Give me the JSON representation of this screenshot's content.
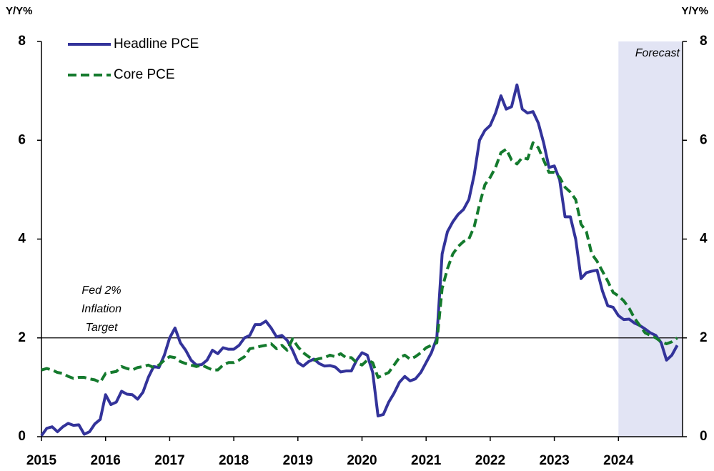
{
  "chart_data": {
    "type": "line",
    "y_label": "Y/Y%",
    "y2_label": "Y/Y%",
    "xlim": [
      2015,
      2025
    ],
    "xticks": [
      2015,
      2016,
      2017,
      2018,
      2019,
      2020,
      2021,
      2022,
      2023,
      2024
    ],
    "ylim": [
      0,
      8
    ],
    "yticks": [
      0,
      2,
      4,
      6,
      8
    ],
    "y2lim": [
      0,
      8
    ],
    "y2ticks": [
      0,
      2,
      4,
      6,
      8
    ],
    "grid": false,
    "legend": "upper left",
    "reference_line": {
      "value": 2,
      "color": "#000000",
      "label_lines": [
        "Fed 2%",
        "Inflation",
        "Target"
      ]
    },
    "shaded_region": {
      "xlim": [
        2024,
        2025
      ],
      "label": "Forecast",
      "color": "#e2e4f4"
    },
    "x": [
      2015,
      2015.083,
      2015.167,
      2015.25,
      2015.333,
      2015.417,
      2015.5,
      2015.583,
      2015.667,
      2015.75,
      2015.833,
      2015.917,
      2016,
      2016.083,
      2016.167,
      2016.25,
      2016.333,
      2016.417,
      2016.5,
      2016.583,
      2016.667,
      2016.75,
      2016.833,
      2016.917,
      2017,
      2017.083,
      2017.167,
      2017.25,
      2017.333,
      2017.417,
      2017.5,
      2017.583,
      2017.667,
      2017.75,
      2017.833,
      2017.917,
      2018,
      2018.083,
      2018.167,
      2018.25,
      2018.333,
      2018.417,
      2018.5,
      2018.583,
      2018.667,
      2018.75,
      2018.833,
      2018.917,
      2019,
      2019.083,
      2019.167,
      2019.25,
      2019.333,
      2019.417,
      2019.5,
      2019.583,
      2019.667,
      2019.75,
      2019.833,
      2019.917,
      2020,
      2020.083,
      2020.167,
      2020.25,
      2020.333,
      2020.417,
      2020.5,
      2020.583,
      2020.667,
      2020.75,
      2020.833,
      2020.917,
      2021,
      2021.083,
      2021.167,
      2021.25,
      2021.333,
      2021.417,
      2021.5,
      2021.583,
      2021.667,
      2021.75,
      2021.833,
      2021.917,
      2022,
      2022.083,
      2022.167,
      2022.25,
      2022.333,
      2022.417,
      2022.5,
      2022.583,
      2022.667,
      2022.75,
      2022.833,
      2022.917,
      2023,
      2023.083,
      2023.167,
      2023.25,
      2023.333,
      2023.417,
      2023.5,
      2023.583,
      2023.667,
      2023.75,
      2023.833,
      2023.917,
      2024,
      2024.083,
      2024.167,
      2024.25,
      2024.333,
      2024.417,
      2024.5,
      2024.583,
      2024.667,
      2024.75,
      2024.833,
      2024.917
    ],
    "series": [
      {
        "name": "Headline PCE",
        "color": "#33339a",
        "dash": "solid",
        "values": [
          0.02,
          0.17,
          0.2,
          0.1,
          0.2,
          0.27,
          0.23,
          0.24,
          0.05,
          0.1,
          0.26,
          0.35,
          0.85,
          0.65,
          0.7,
          0.92,
          0.86,
          0.85,
          0.76,
          0.9,
          1.2,
          1.42,
          1.4,
          1.65,
          2.0,
          2.2,
          1.9,
          1.75,
          1.55,
          1.45,
          1.46,
          1.55,
          1.75,
          1.68,
          1.8,
          1.77,
          1.77,
          1.85,
          2.0,
          2.05,
          2.27,
          2.27,
          2.34,
          2.2,
          2.02,
          2.05,
          1.95,
          1.75,
          1.5,
          1.43,
          1.52,
          1.57,
          1.48,
          1.43,
          1.44,
          1.41,
          1.31,
          1.33,
          1.33,
          1.55,
          1.7,
          1.65,
          1.3,
          0.42,
          0.45,
          0.7,
          0.88,
          1.1,
          1.22,
          1.13,
          1.17,
          1.3,
          1.5,
          1.7,
          2.0,
          3.7,
          4.15,
          4.35,
          4.5,
          4.6,
          4.8,
          5.3,
          6.0,
          6.2,
          6.3,
          6.55,
          6.9,
          6.63,
          6.68,
          7.12,
          6.63,
          6.55,
          6.58,
          6.35,
          5.95,
          5.45,
          5.48,
          5.2,
          4.45,
          4.45,
          4.0,
          3.2,
          3.32,
          3.35,
          3.37,
          2.95,
          2.65,
          2.62,
          2.45,
          2.37,
          2.38,
          2.3,
          2.25,
          2.18,
          2.1,
          2.05,
          1.9,
          1.55,
          1.65,
          1.85
        ]
      },
      {
        "name": "Core PCE",
        "color": "#147a2d",
        "dash": "dashed",
        "values": [
          1.35,
          1.38,
          1.35,
          1.3,
          1.28,
          1.22,
          1.18,
          1.2,
          1.2,
          1.17,
          1.15,
          1.1,
          1.28,
          1.3,
          1.32,
          1.42,
          1.38,
          1.35,
          1.4,
          1.42,
          1.45,
          1.4,
          1.45,
          1.55,
          1.62,
          1.6,
          1.52,
          1.48,
          1.45,
          1.42,
          1.45,
          1.4,
          1.35,
          1.35,
          1.45,
          1.5,
          1.5,
          1.55,
          1.62,
          1.78,
          1.8,
          1.83,
          1.85,
          1.88,
          1.78,
          1.85,
          1.75,
          1.98,
          1.82,
          1.7,
          1.62,
          1.55,
          1.58,
          1.6,
          1.65,
          1.62,
          1.68,
          1.6,
          1.6,
          1.5,
          1.45,
          1.55,
          1.5,
          1.2,
          1.25,
          1.3,
          1.45,
          1.6,
          1.65,
          1.57,
          1.62,
          1.7,
          1.8,
          1.85,
          1.9,
          3.0,
          3.4,
          3.7,
          3.85,
          3.95,
          4.0,
          4.25,
          4.7,
          5.1,
          5.25,
          5.45,
          5.75,
          5.82,
          5.6,
          5.52,
          5.65,
          5.62,
          5.95,
          5.85,
          5.6,
          5.35,
          5.35,
          5.25,
          5.05,
          4.95,
          4.8,
          4.3,
          4.15,
          3.7,
          3.55,
          3.35,
          3.15,
          2.92,
          2.85,
          2.75,
          2.6,
          2.4,
          2.25,
          2.1,
          2.05,
          2.0,
          1.92,
          1.88,
          1.92,
          2.0
        ]
      }
    ]
  }
}
